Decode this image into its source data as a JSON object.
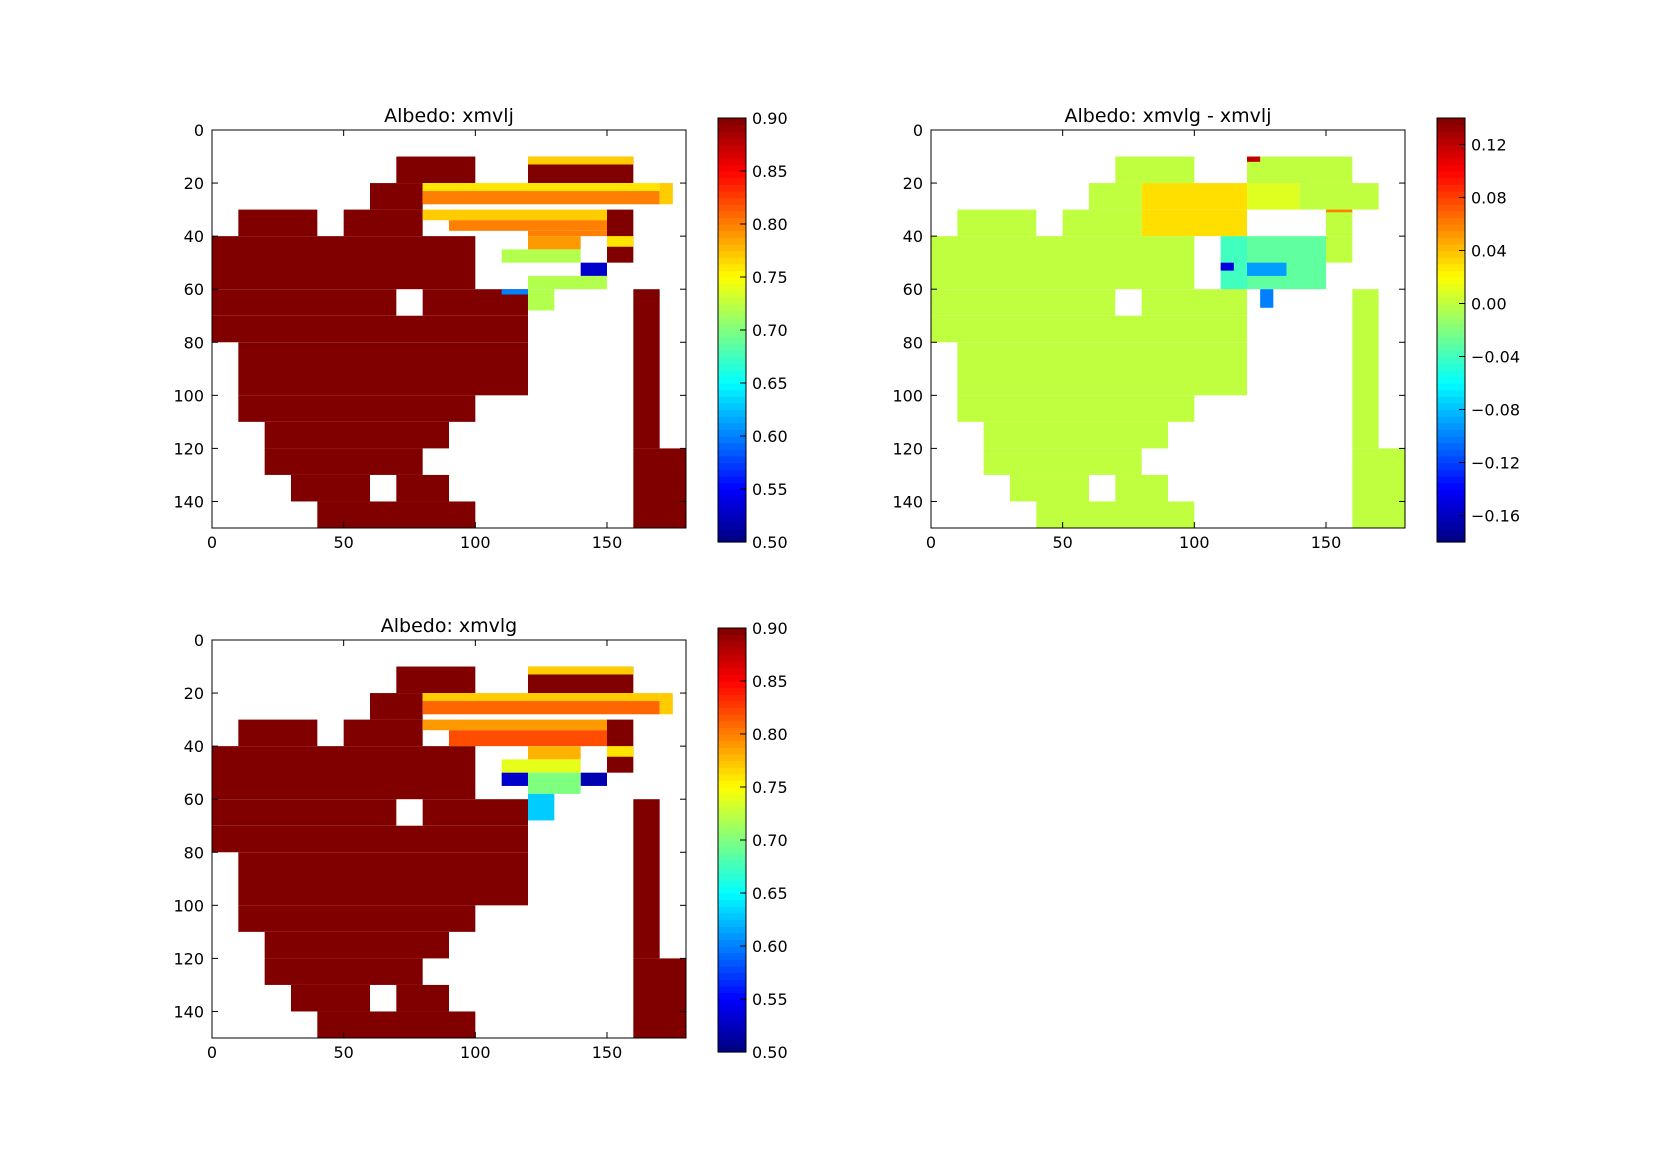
{
  "chart_data": [
    {
      "type": "heatmap",
      "title": "Albedo: xmvlj",
      "xlim": [
        0,
        180
      ],
      "ylim": [
        150,
        0
      ],
      "xticks": [
        "0",
        "50",
        "100",
        "150"
      ],
      "yticks": [
        "0",
        "20",
        "40",
        "60",
        "80",
        "100",
        "120",
        "140"
      ],
      "colorbar": {
        "range": [
          0.5,
          0.9
        ],
        "colormap": "jet",
        "ticks": [
          "0.90",
          "0.85",
          "0.80",
          "0.75",
          "0.70",
          "0.65",
          "0.60",
          "0.55",
          "0.50"
        ]
      },
      "cells": [
        [
          70,
          10,
          100,
          20,
          0.9
        ],
        [
          60,
          20,
          80,
          30,
          0.9
        ],
        [
          10,
          30,
          40,
          40,
          0.9
        ],
        [
          50,
          30,
          80,
          40,
          0.9
        ],
        [
          0,
          40,
          100,
          60,
          0.9
        ],
        [
          0,
          60,
          70,
          70,
          0.9
        ],
        [
          80,
          60,
          120,
          70,
          0.9
        ],
        [
          0,
          70,
          120,
          80,
          0.9
        ],
        [
          10,
          80,
          120,
          100,
          0.9
        ],
        [
          10,
          100,
          100,
          110,
          0.9
        ],
        [
          20,
          110,
          90,
          120,
          0.9
        ],
        [
          20,
          120,
          80,
          130,
          0.9
        ],
        [
          30,
          130,
          60,
          140,
          0.9
        ],
        [
          70,
          130,
          90,
          140,
          0.9
        ],
        [
          40,
          140,
          100,
          150,
          0.9
        ],
        [
          160,
          60,
          170,
          120,
          0.9
        ],
        [
          160,
          120,
          180,
          150,
          0.9
        ],
        [
          120,
          10,
          160,
          20,
          0.9
        ],
        [
          150,
          30,
          160,
          40,
          0.9
        ],
        [
          150,
          40,
          160,
          50,
          0.9
        ],
        [
          120,
          10,
          160,
          13,
          0.77
        ],
        [
          80,
          20,
          170,
          23,
          0.76
        ],
        [
          80,
          23,
          170,
          28,
          0.8
        ],
        [
          170,
          20,
          175,
          28,
          0.77
        ],
        [
          80,
          30,
          150,
          34,
          0.77
        ],
        [
          90,
          34,
          150,
          38,
          0.8
        ],
        [
          120,
          38,
          150,
          40,
          0.8
        ],
        [
          120,
          40,
          140,
          45,
          0.79
        ],
        [
          110,
          45,
          140,
          50,
          0.72
        ],
        [
          140,
          50,
          150,
          55,
          0.53
        ],
        [
          120,
          55,
          150,
          60,
          0.72
        ],
        [
          110,
          60,
          120,
          62,
          0.6
        ],
        [
          120,
          60,
          130,
          68,
          0.72
        ],
        [
          150,
          40,
          160,
          44,
          0.76
        ]
      ]
    },
    {
      "type": "heatmap",
      "title": "Albedo: xmvlg - xmvlj",
      "xlim": [
        0,
        180
      ],
      "ylim": [
        150,
        0
      ],
      "xticks": [
        "0",
        "50",
        "100",
        "150"
      ],
      "yticks": [
        "0",
        "20",
        "40",
        "60",
        "80",
        "100",
        "120",
        "140"
      ],
      "colorbar": {
        "range": [
          -0.18,
          0.14
        ],
        "colormap": "jet",
        "ticks": [
          "0.12",
          "0.08",
          "0.04",
          "0.00",
          "−0.04",
          "−0.08",
          "−0.12",
          "−0.16"
        ]
      },
      "cells": [
        [
          70,
          10,
          100,
          20,
          0.0
        ],
        [
          60,
          20,
          80,
          30,
          0.0
        ],
        [
          10,
          30,
          40,
          40,
          0.0
        ],
        [
          50,
          30,
          80,
          40,
          0.0
        ],
        [
          0,
          40,
          100,
          60,
          0.0
        ],
        [
          0,
          60,
          70,
          70,
          0.0
        ],
        [
          80,
          60,
          120,
          70,
          0.0
        ],
        [
          0,
          70,
          120,
          80,
          0.0
        ],
        [
          10,
          80,
          120,
          100,
          0.0
        ],
        [
          10,
          100,
          100,
          110,
          0.0
        ],
        [
          20,
          110,
          90,
          120,
          0.0
        ],
        [
          20,
          120,
          80,
          130,
          0.0
        ],
        [
          30,
          130,
          60,
          140,
          0.0
        ],
        [
          70,
          130,
          90,
          140,
          0.0
        ],
        [
          40,
          140,
          100,
          150,
          0.0
        ],
        [
          160,
          60,
          170,
          120,
          0.0
        ],
        [
          160,
          120,
          180,
          150,
          0.0
        ],
        [
          120,
          10,
          160,
          20,
          0.0
        ],
        [
          150,
          30,
          160,
          40,
          0.0
        ],
        [
          150,
          40,
          160,
          50,
          0.0
        ],
        [
          120,
          10,
          125,
          12,
          0.12
        ],
        [
          80,
          20,
          120,
          30,
          0.03
        ],
        [
          120,
          20,
          140,
          30,
          0.01
        ],
        [
          140,
          20,
          170,
          30,
          0.0
        ],
        [
          80,
          30,
          120,
          40,
          0.03
        ],
        [
          110,
          40,
          120,
          60,
          -0.04
        ],
        [
          110,
          50,
          115,
          53,
          -0.15
        ],
        [
          120,
          40,
          150,
          60,
          -0.03
        ],
        [
          120,
          50,
          135,
          55,
          -0.09
        ],
        [
          125,
          60,
          130,
          67,
          -0.1
        ],
        [
          150,
          30,
          160,
          31,
          0.06
        ]
      ]
    },
    {
      "type": "heatmap",
      "title": "Albedo: xmvlg",
      "xlim": [
        0,
        180
      ],
      "ylim": [
        150,
        0
      ],
      "xticks": [
        "0",
        "50",
        "100",
        "150"
      ],
      "yticks": [
        "0",
        "20",
        "40",
        "60",
        "80",
        "100",
        "120",
        "140"
      ],
      "colorbar": {
        "range": [
          0.5,
          0.9
        ],
        "colormap": "jet",
        "ticks": [
          "0.90",
          "0.85",
          "0.80",
          "0.75",
          "0.70",
          "0.65",
          "0.60",
          "0.55",
          "0.50"
        ]
      },
      "cells": [
        [
          70,
          10,
          100,
          20,
          0.9
        ],
        [
          60,
          20,
          80,
          30,
          0.9
        ],
        [
          10,
          30,
          40,
          40,
          0.9
        ],
        [
          50,
          30,
          80,
          40,
          0.9
        ],
        [
          0,
          40,
          100,
          60,
          0.9
        ],
        [
          0,
          60,
          70,
          70,
          0.9
        ],
        [
          80,
          60,
          120,
          70,
          0.9
        ],
        [
          0,
          70,
          120,
          80,
          0.9
        ],
        [
          10,
          80,
          120,
          100,
          0.9
        ],
        [
          10,
          100,
          100,
          110,
          0.9
        ],
        [
          20,
          110,
          90,
          120,
          0.9
        ],
        [
          20,
          120,
          80,
          130,
          0.9
        ],
        [
          30,
          130,
          60,
          140,
          0.9
        ],
        [
          70,
          130,
          90,
          140,
          0.9
        ],
        [
          40,
          140,
          100,
          150,
          0.9
        ],
        [
          160,
          60,
          170,
          120,
          0.9
        ],
        [
          160,
          120,
          180,
          150,
          0.9
        ],
        [
          120,
          10,
          160,
          20,
          0.9
        ],
        [
          150,
          30,
          160,
          40,
          0.9
        ],
        [
          150,
          40,
          160,
          50,
          0.9
        ],
        [
          120,
          10,
          160,
          13,
          0.77
        ],
        [
          80,
          20,
          170,
          23,
          0.77
        ],
        [
          80,
          23,
          170,
          28,
          0.81
        ],
        [
          170,
          20,
          175,
          28,
          0.77
        ],
        [
          80,
          30,
          150,
          34,
          0.79
        ],
        [
          90,
          34,
          150,
          40,
          0.82
        ],
        [
          120,
          40,
          140,
          45,
          0.78
        ],
        [
          110,
          45,
          140,
          50,
          0.74
        ],
        [
          110,
          50,
          120,
          55,
          0.53
        ],
        [
          140,
          50,
          150,
          55,
          0.52
        ],
        [
          120,
          50,
          140,
          58,
          0.7
        ],
        [
          120,
          58,
          130,
          68,
          0.63
        ],
        [
          150,
          40,
          160,
          44,
          0.76
        ]
      ]
    }
  ]
}
